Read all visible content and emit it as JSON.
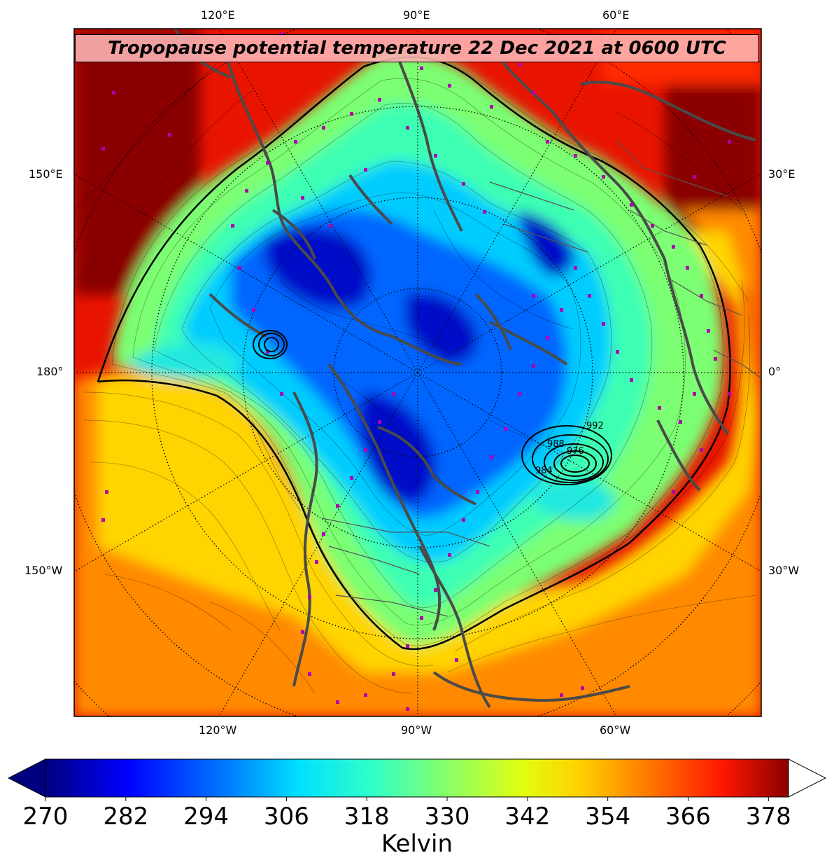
{
  "title": "Tropopause potential temperature 22 Dec 2021 at 0600 UTC",
  "longitude_labels": {
    "top": [
      "120°E",
      "90°E",
      "60°E"
    ],
    "left": [
      "150°E",
      "180°",
      "150°W"
    ],
    "right": [
      "30°E",
      "0°",
      "30°W"
    ],
    "bottom": [
      "120°W",
      "90°W",
      "60°W"
    ]
  },
  "colorbar": {
    "ticks": [
      "270",
      "282",
      "294",
      "306",
      "318",
      "330",
      "342",
      "354",
      "366",
      "378"
    ],
    "min": 270,
    "max": 381,
    "extend": "both",
    "label": "Kelvin",
    "colors": [
      "#00007f",
      "#0000ff",
      "#0080ff",
      "#00e0ff",
      "#30ffc8",
      "#90ff60",
      "#e0ff10",
      "#ffd000",
      "#ff7000",
      "#ff1800",
      "#8a0000"
    ]
  },
  "contour_labels": [
    "992",
    "988",
    "984",
    "976"
  ],
  "colors": {
    "warm_region": "#e81400",
    "dark_red": "#8a0000",
    "coastline": "#4a4a4a",
    "station_marker": "#b000b0"
  }
}
